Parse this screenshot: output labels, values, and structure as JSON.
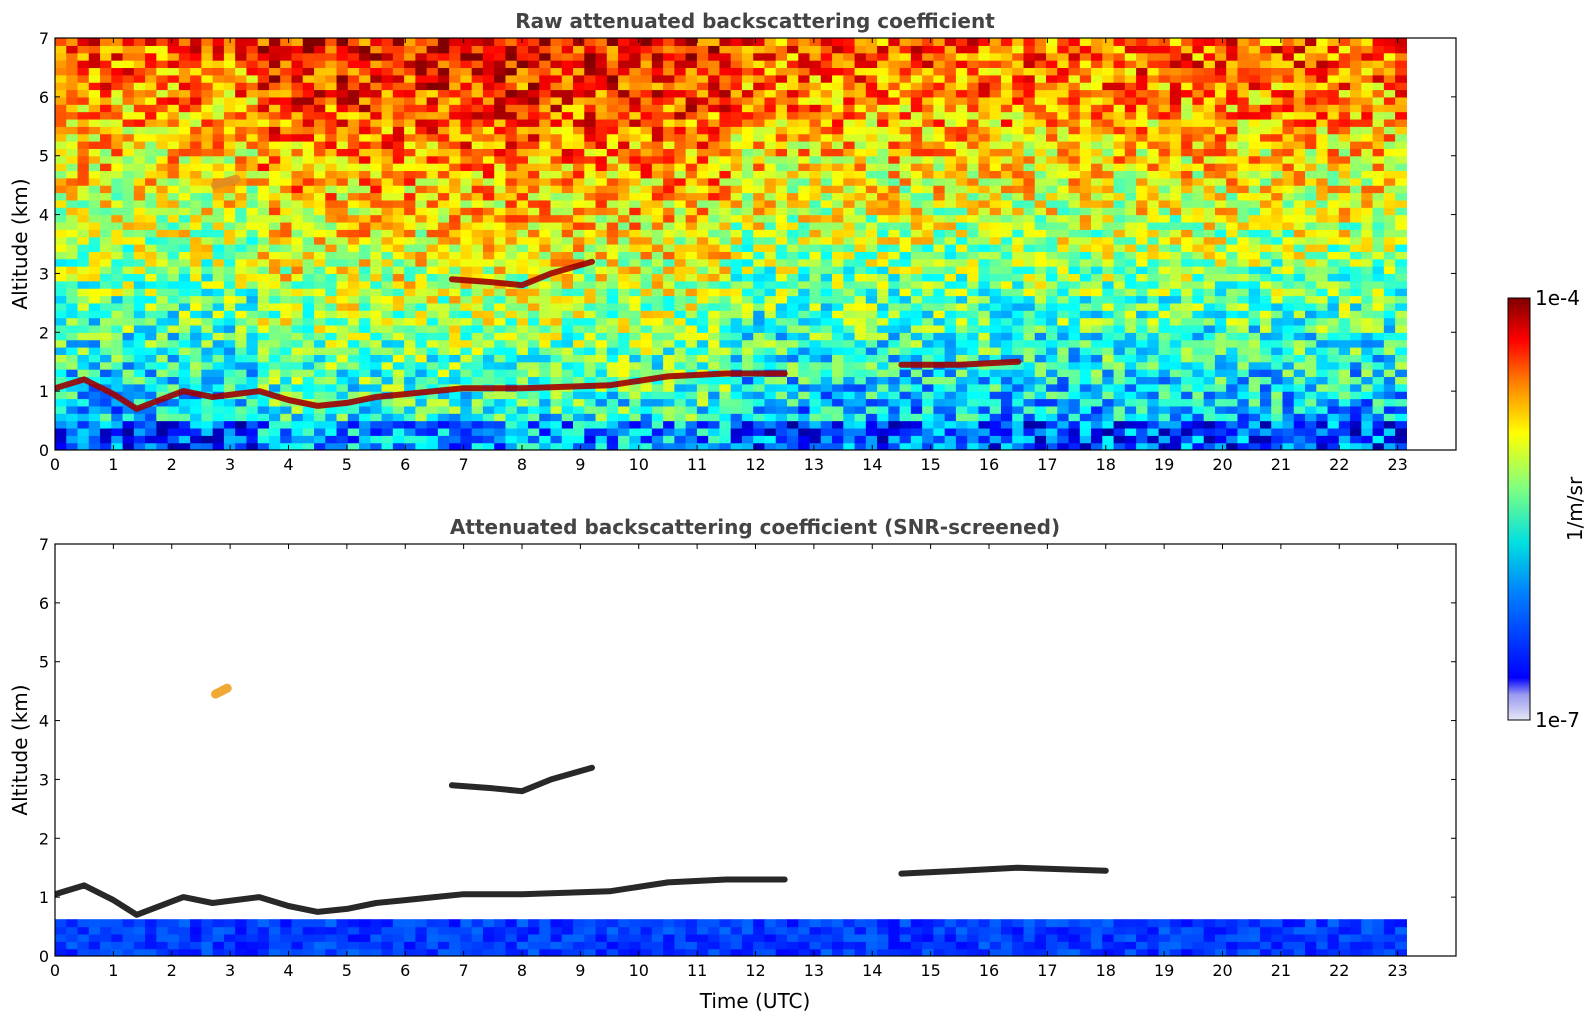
{
  "chart_data": [
    {
      "type": "heatmap",
      "title": "Raw attenuated backscattering coefficient",
      "xlabel": "",
      "ylabel": "Altitude (km)",
      "xlim": [
        0,
        24
      ],
      "ylim": [
        0,
        7
      ],
      "xticks": [
        "0",
        "1",
        "2",
        "3",
        "4",
        "5",
        "6",
        "7",
        "8",
        "9",
        "10",
        "11",
        "12",
        "13",
        "14",
        "15",
        "16",
        "17",
        "18",
        "19",
        "20",
        "21",
        "22",
        "23"
      ],
      "yticks": [
        "0",
        "1",
        "2",
        "3",
        "4",
        "5",
        "6",
        "7"
      ],
      "data_end_time": 23.15,
      "features": [
        {
          "kind": "boundary_layer_top",
          "points": [
            [
              0,
              1.05
            ],
            [
              0.5,
              1.2
            ],
            [
              1,
              0.95
            ],
            [
              1.4,
              0.7
            ],
            [
              2.2,
              1.0
            ],
            [
              2.7,
              0.9
            ],
            [
              3.5,
              1.0
            ],
            [
              4,
              0.85
            ],
            [
              4.5,
              0.75
            ],
            [
              5,
              0.8
            ],
            [
              5.5,
              0.9
            ],
            [
              6,
              0.95
            ],
            [
              6.5,
              1.0
            ],
            [
              7,
              1.05
            ],
            [
              8,
              1.05
            ],
            [
              9.5,
              1.1
            ],
            [
              10.5,
              1.25
            ],
            [
              11.5,
              1.3
            ],
            [
              12.5,
              1.3
            ]
          ]
        },
        {
          "kind": "elevated_layer",
          "points": [
            [
              6.8,
              2.9
            ],
            [
              7.5,
              2.85
            ],
            [
              8,
              2.8
            ],
            [
              8.5,
              3.0
            ],
            [
              9.2,
              3.2
            ]
          ]
        },
        {
          "kind": "elevated_layer",
          "points": [
            [
              14.5,
              1.45
            ],
            [
              15.5,
              1.45
            ],
            [
              16.5,
              1.5
            ]
          ]
        },
        {
          "kind": "aerosol_patch",
          "points": [
            [
              2.75,
              4.5
            ],
            [
              3.1,
              4.6
            ]
          ]
        }
      ]
    },
    {
      "type": "heatmap",
      "title": "Attenuated backscattering coefficient (SNR-screened)",
      "xlabel": "Time (UTC)",
      "ylabel": "Altitude (km)",
      "xlim": [
        0,
        24
      ],
      "ylim": [
        0,
        7
      ],
      "xticks": [
        "0",
        "1",
        "2",
        "3",
        "4",
        "5",
        "6",
        "7",
        "8",
        "9",
        "10",
        "11",
        "12",
        "13",
        "14",
        "15",
        "16",
        "17",
        "18",
        "19",
        "20",
        "21",
        "22",
        "23"
      ],
      "yticks": [
        "0",
        "1",
        "2",
        "3",
        "4",
        "5",
        "6",
        "7"
      ],
      "data_end_time": 23.15,
      "features": [
        {
          "kind": "boundary_layer_top",
          "points": [
            [
              0,
              1.05
            ],
            [
              0.5,
              1.2
            ],
            [
              1,
              0.95
            ],
            [
              1.4,
              0.7
            ],
            [
              2.2,
              1.0
            ],
            [
              2.7,
              0.9
            ],
            [
              3.5,
              1.0
            ],
            [
              4,
              0.85
            ],
            [
              4.5,
              0.75
            ],
            [
              5,
              0.8
            ],
            [
              5.5,
              0.9
            ],
            [
              6,
              0.95
            ],
            [
              6.5,
              1.0
            ],
            [
              7,
              1.05
            ],
            [
              8,
              1.05
            ],
            [
              9.5,
              1.1
            ],
            [
              10.5,
              1.25
            ],
            [
              11.5,
              1.3
            ],
            [
              12.5,
              1.3
            ]
          ]
        },
        {
          "kind": "elevated_layer",
          "points": [
            [
              6.8,
              2.9
            ],
            [
              7.5,
              2.85
            ],
            [
              8,
              2.8
            ],
            [
              8.5,
              3.0
            ],
            [
              9.2,
              3.2
            ]
          ]
        },
        {
          "kind": "elevated_layer",
          "points": [
            [
              14.5,
              1.4
            ],
            [
              15.5,
              1.45
            ],
            [
              16.5,
              1.5
            ],
            [
              18,
              1.45
            ]
          ]
        },
        {
          "kind": "aerosol_patch",
          "points": [
            [
              2.75,
              4.45
            ],
            [
              2.95,
              4.55
            ]
          ]
        }
      ]
    }
  ],
  "colorbar": {
    "label": "1/m/sr",
    "max_label": "1e-4",
    "min_label": "1e-7",
    "scale": "log",
    "range": [
      1e-07,
      0.0001
    ],
    "colormap": "jet",
    "colors": [
      "#e6e6f5",
      "#0000ff",
      "#0080ff",
      "#00e0e0",
      "#80ff80",
      "#ffff00",
      "#ff8000",
      "#ff0000",
      "#800000"
    ]
  }
}
